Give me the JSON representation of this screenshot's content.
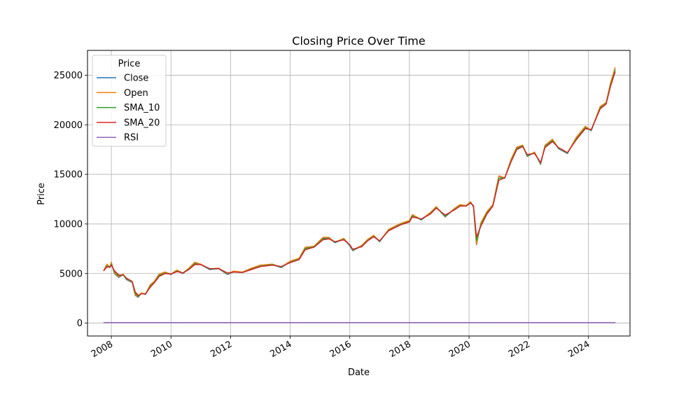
{
  "chart_data": {
    "type": "line",
    "title": "Closing Price Over Time",
    "xlabel": "Date",
    "ylabel": "Price",
    "grid": true,
    "legend_position": "upper-left",
    "legend_title": "Price",
    "xlim": [
      2007.2,
      2025.4
    ],
    "ylim": [
      -1300,
      27500
    ],
    "x_ticks": [
      2008,
      2010,
      2012,
      2014,
      2016,
      2018,
      2020,
      2022,
      2024
    ],
    "x_tick_labels": [
      "2008",
      "2010",
      "2012",
      "2014",
      "2016",
      "2018",
      "2020",
      "2022",
      "2024"
    ],
    "y_ticks": [
      0,
      5000,
      10000,
      15000,
      20000,
      25000
    ],
    "y_tick_labels": [
      "0",
      "5000",
      "10000",
      "15000",
      "20000",
      "25000"
    ],
    "x": [
      2007.75,
      2007.85,
      2007.95,
      2008.0,
      2008.1,
      2008.25,
      2008.4,
      2008.5,
      2008.7,
      2008.8,
      2008.9,
      2009.0,
      2009.15,
      2009.3,
      2009.45,
      2009.6,
      2009.8,
      2010.0,
      2010.2,
      2010.4,
      2010.6,
      2010.8,
      2011.0,
      2011.3,
      2011.6,
      2011.9,
      2012.1,
      2012.4,
      2012.7,
      2013.0,
      2013.4,
      2013.7,
      2014.0,
      2014.3,
      2014.5,
      2014.8,
      2015.1,
      2015.3,
      2015.5,
      2015.8,
      2016.0,
      2016.1,
      2016.4,
      2016.6,
      2016.8,
      2017.0,
      2017.3,
      2017.7,
      2018.0,
      2018.1,
      2018.4,
      2018.7,
      2018.9,
      2019.2,
      2019.5,
      2019.7,
      2019.9,
      2020.05,
      2020.15,
      2020.25,
      2020.4,
      2020.6,
      2020.8,
      2021.0,
      2021.2,
      2021.4,
      2021.6,
      2021.8,
      2021.95,
      2022.2,
      2022.4,
      2022.55,
      2022.8,
      2023.0,
      2023.3,
      2023.6,
      2023.9,
      2024.1,
      2024.4,
      2024.6,
      2024.75,
      2024.9
    ],
    "series": [
      {
        "name": "Close",
        "color": "#1f77b4",
        "values": [
          5300,
          5900,
          5600,
          6100,
          5000,
          4600,
          4900,
          4400,
          4100,
          2800,
          2600,
          3000,
          2900,
          3800,
          4200,
          4900,
          5100,
          4900,
          5300,
          5000,
          5500,
          6100,
          5900,
          5400,
          5500,
          4900,
          5200,
          5100,
          5500,
          5800,
          5900,
          5600,
          6200,
          6500,
          7600,
          7700,
          8600,
          8600,
          8100,
          8500,
          7800,
          7300,
          7800,
          8400,
          8800,
          8200,
          9400,
          10000,
          10300,
          10900,
          10400,
          11100,
          11700,
          10700,
          11500,
          11900,
          11800,
          12200,
          11700,
          7900,
          10100,
          11200,
          11900,
          14800,
          14600,
          16400,
          17700,
          17900,
          16800,
          17200,
          16000,
          17900,
          18500,
          17600,
          17100,
          18700,
          19800,
          19400,
          21800,
          22200,
          24200,
          25700
        ]
      },
      {
        "name": "Open",
        "color": "#ff7f0e",
        "values": [
          5350,
          5950,
          5650,
          6150,
          5050,
          4650,
          4950,
          4450,
          4150,
          2850,
          2650,
          3050,
          2950,
          3850,
          4250,
          4950,
          5150,
          4950,
          5350,
          5050,
          5550,
          6150,
          5950,
          5450,
          5550,
          4950,
          5250,
          5150,
          5550,
          5850,
          5950,
          5650,
          6250,
          6550,
          7650,
          7750,
          8650,
          8650,
          8150,
          8550,
          7850,
          7350,
          7850,
          8450,
          8850,
          8250,
          9450,
          10050,
          10350,
          10950,
          10450,
          11150,
          11750,
          10750,
          11550,
          11950,
          11850,
          12250,
          11750,
          7950,
          10150,
          11250,
          11950,
          14850,
          14650,
          16450,
          17750,
          17950,
          16850,
          17250,
          16050,
          17950,
          18550,
          17650,
          17150,
          18750,
          19850,
          19450,
          21850,
          22250,
          24250,
          25750
        ]
      },
      {
        "name": "SMA_10",
        "color": "#2ca02c",
        "values": [
          5300,
          5750,
          5650,
          5950,
          5200,
          4750,
          4850,
          4500,
          4150,
          3000,
          2700,
          2950,
          2950,
          3700,
          4150,
          4800,
          5050,
          4950,
          5250,
          5050,
          5450,
          6000,
          5900,
          5450,
          5500,
          5000,
          5150,
          5100,
          5450,
          5750,
          5900,
          5650,
          6150,
          6450,
          7500,
          7700,
          8500,
          8550,
          8150,
          8450,
          7850,
          7400,
          7750,
          8350,
          8750,
          8250,
          9350,
          9950,
          10250,
          10800,
          10450,
          11050,
          11650,
          10800,
          11450,
          11850,
          11800,
          12150,
          11800,
          8300,
          9950,
          11100,
          11850,
          14600,
          14650,
          16300,
          17600,
          17850,
          16900,
          17150,
          16100,
          17800,
          18400,
          17650,
          17150,
          18600,
          19700,
          19450,
          21700,
          22150,
          24050,
          25500
        ]
      },
      {
        "name": "SMA_20",
        "color": "#d62728",
        "values": [
          5300,
          5650,
          5650,
          5850,
          5300,
          4850,
          4850,
          4550,
          4200,
          3150,
          2800,
          2950,
          2950,
          3600,
          4100,
          4700,
          5000,
          4950,
          5200,
          5050,
          5400,
          5900,
          5900,
          5500,
          5500,
          5050,
          5150,
          5100,
          5400,
          5700,
          5850,
          5700,
          6100,
          6400,
          7400,
          7650,
          8400,
          8500,
          8200,
          8400,
          7900,
          7450,
          7700,
          8300,
          8700,
          8300,
          9300,
          9900,
          10200,
          10700,
          10500,
          11000,
          11600,
          10900,
          11400,
          11800,
          11800,
          12100,
          11850,
          8700,
          9800,
          11000,
          11800,
          14400,
          14650,
          16200,
          17500,
          17800,
          17000,
          17100,
          16200,
          17700,
          18300,
          17700,
          17200,
          18500,
          19600,
          19500,
          21600,
          22100,
          23900,
          25300
        ]
      },
      {
        "name": "RSI",
        "color": "#9467bd",
        "values": [
          50,
          50,
          50,
          50,
          50,
          50,
          50,
          50,
          50,
          50,
          50,
          50,
          50,
          50,
          50,
          50,
          50,
          50,
          50,
          50,
          50,
          50,
          50,
          50,
          50,
          50,
          50,
          50,
          50,
          50,
          50,
          50,
          50,
          50,
          50,
          50,
          50,
          50,
          50,
          50,
          50,
          50,
          50,
          50,
          50,
          50,
          50,
          50,
          50,
          50,
          50,
          50,
          50,
          50,
          50,
          50,
          50,
          50,
          50,
          50,
          50,
          50,
          50,
          50,
          50,
          50,
          50,
          50,
          50,
          50,
          50,
          50,
          50,
          50,
          50,
          50,
          50,
          50,
          50,
          50,
          50,
          50
        ]
      }
    ]
  }
}
